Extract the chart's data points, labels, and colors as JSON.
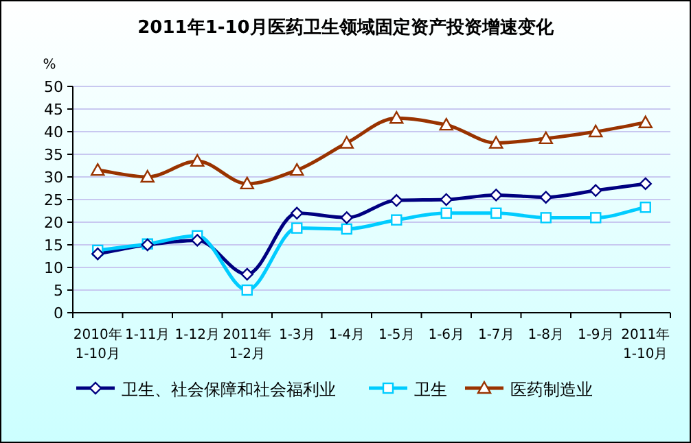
{
  "chart_data": {
    "type": "line",
    "title": "2011年1-10月医药卫生领域固定资产投资增速变化",
    "ylabel": "%",
    "categories": [
      "2010年\n1-10月",
      "1-11月",
      "1-12月",
      "2011年\n1-2月",
      "1-3月",
      "1-4月",
      "1-5月",
      "1-6月",
      "1-7月",
      "1-8月",
      "1-9月",
      "2011年\n1-10月"
    ],
    "series": [
      {
        "name": "卫生、社会保障和社会福利业",
        "color": "#000080",
        "marker": "diamond",
        "values": [
          13,
          15,
          16,
          8.5,
          22,
          21,
          24.8,
          25,
          26,
          25.5,
          27,
          28.5
        ]
      },
      {
        "name": "卫生",
        "color": "#00ccff",
        "marker": "square",
        "values": [
          13.8,
          15.2,
          17,
          5,
          18.7,
          18.5,
          20.5,
          22,
          22,
          21,
          21,
          23.3
        ]
      },
      {
        "name": "医药制造业",
        "color": "#993300",
        "marker": "triangle",
        "values": [
          31.5,
          30,
          33.5,
          28.5,
          31.5,
          37.5,
          43,
          41.5,
          37.5,
          38.5,
          40,
          42
        ]
      }
    ],
    "ylim": [
      0,
      50
    ],
    "yticks": [
      0,
      5,
      10,
      15,
      20,
      25,
      30,
      35,
      40,
      45,
      50
    ],
    "grid": "y",
    "legend": "bottom"
  }
}
